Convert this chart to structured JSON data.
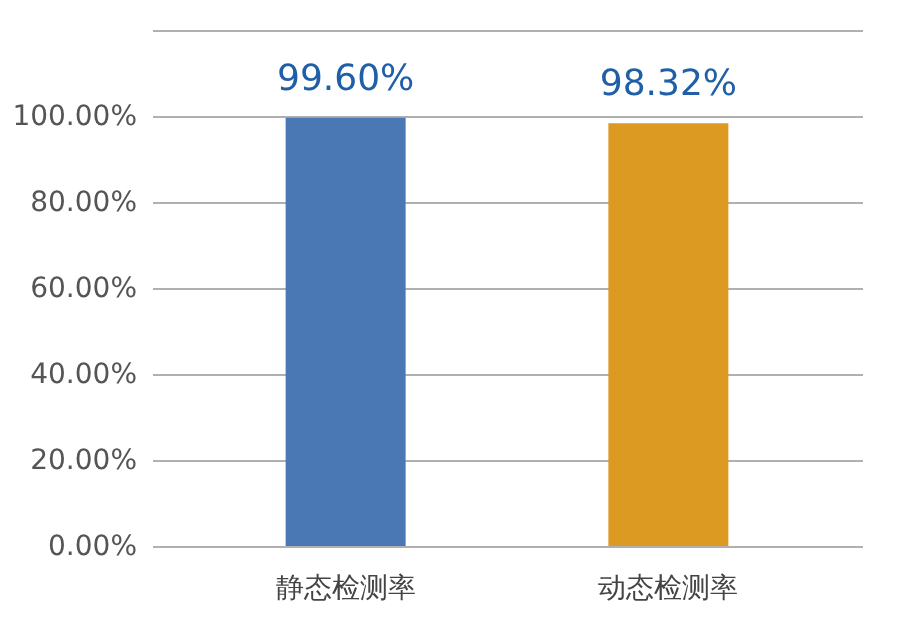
{
  "chart_data": {
    "type": "bar",
    "categories": [
      "静态检测率",
      "动态检测率"
    ],
    "values": [
      99.6,
      98.32
    ],
    "colors": [
      "#4a78b4",
      "#dc9a22"
    ],
    "value_labels": [
      "99.60%",
      "98.32%"
    ],
    "ylim": [
      0,
      120
    ],
    "yticks": [
      {
        "value": 0,
        "label": "0.00%"
      },
      {
        "value": 20,
        "label": "20.00%"
      },
      {
        "value": 40,
        "label": "40.00%"
      },
      {
        "value": 60,
        "label": "60.00%"
      },
      {
        "value": 80,
        "label": "80.00%"
      },
      {
        "value": 100,
        "label": "100.00%"
      },
      {
        "value": 120,
        "label": null
      }
    ],
    "grid": "y"
  }
}
